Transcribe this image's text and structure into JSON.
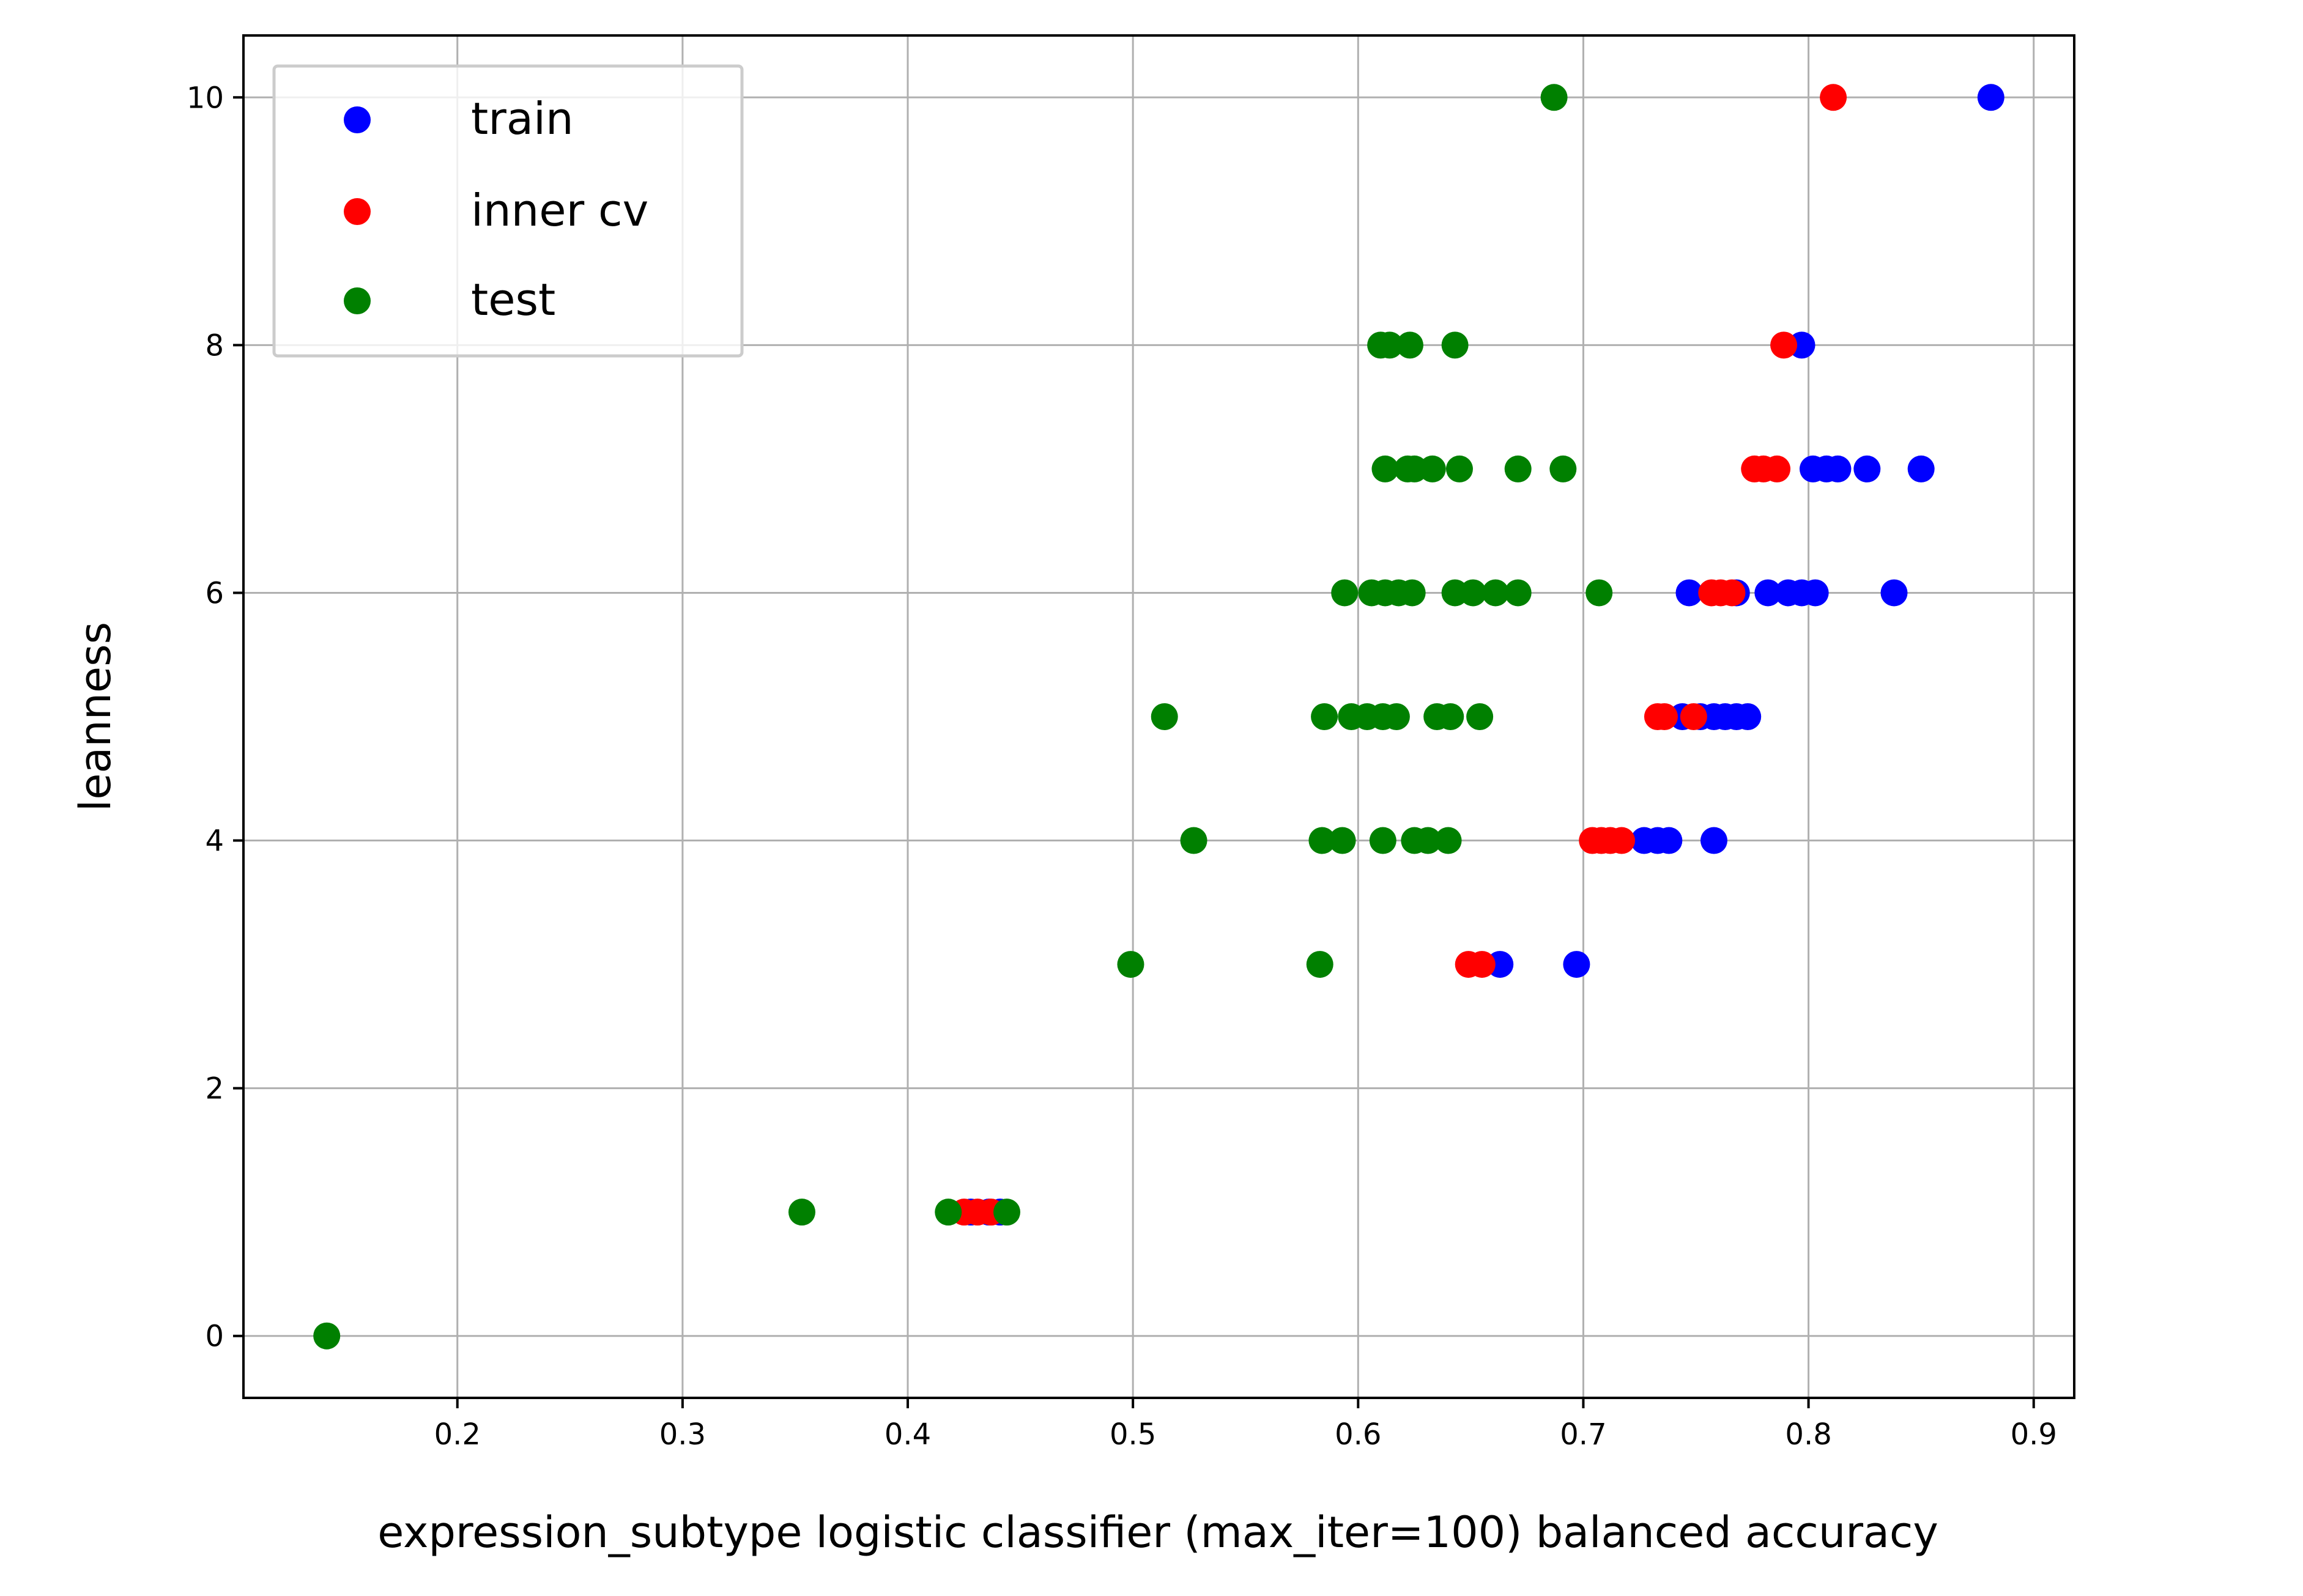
{
  "chart_data": {
    "type": "scatter",
    "title": "",
    "xlabel": "expression_subtype logistic classifier (max_iter=100) balanced accuracy",
    "ylabel": "leanness",
    "xlim": [
      0.105,
      0.918
    ],
    "ylim": [
      -0.5,
      10.5
    ],
    "xticks": [
      "0.2",
      "0.3",
      "0.4",
      "0.5",
      "0.6",
      "0.7",
      "0.8",
      "0.9"
    ],
    "yticks": [
      "0",
      "2",
      "4",
      "6",
      "8",
      "10"
    ],
    "grid": true,
    "legend_position": "top-left",
    "series": [
      {
        "name": "train",
        "color": "#0000ff",
        "points": [
          [
            0.881,
            10
          ],
          [
            0.797,
            8
          ],
          [
            0.85,
            7
          ],
          [
            0.826,
            7
          ],
          [
            0.813,
            7
          ],
          [
            0.808,
            7
          ],
          [
            0.802,
            7
          ],
          [
            0.838,
            6
          ],
          [
            0.803,
            6
          ],
          [
            0.797,
            6
          ],
          [
            0.791,
            6
          ],
          [
            0.782,
            6
          ],
          [
            0.768,
            6
          ],
          [
            0.747,
            6
          ],
          [
            0.773,
            5
          ],
          [
            0.768,
            5
          ],
          [
            0.763,
            5
          ],
          [
            0.758,
            5
          ],
          [
            0.752,
            5
          ],
          [
            0.744,
            5
          ],
          [
            0.758,
            4
          ],
          [
            0.738,
            4
          ],
          [
            0.733,
            4
          ],
          [
            0.727,
            4
          ],
          [
            0.697,
            3
          ],
          [
            0.663,
            3
          ],
          [
            0.441,
            1
          ],
          [
            0.436,
            1
          ],
          [
            0.428,
            1
          ]
        ]
      },
      {
        "name": "inner cv",
        "color": "#ff0000",
        "points": [
          [
            0.811,
            10
          ],
          [
            0.789,
            8
          ],
          [
            0.786,
            7
          ],
          [
            0.78,
            7
          ],
          [
            0.776,
            7
          ],
          [
            0.766,
            6
          ],
          [
            0.761,
            6
          ],
          [
            0.757,
            6
          ],
          [
            0.749,
            5
          ],
          [
            0.736,
            5
          ],
          [
            0.733,
            5
          ],
          [
            0.717,
            4
          ],
          [
            0.712,
            4
          ],
          [
            0.708,
            4
          ],
          [
            0.704,
            4
          ],
          [
            0.655,
            3
          ],
          [
            0.649,
            3
          ],
          [
            0.437,
            1
          ],
          [
            0.431,
            1
          ],
          [
            0.425,
            1
          ]
        ]
      },
      {
        "name": "test",
        "color": "#008000",
        "points": [
          [
            0.687,
            10
          ],
          [
            0.643,
            8
          ],
          [
            0.623,
            8
          ],
          [
            0.614,
            8
          ],
          [
            0.61,
            8
          ],
          [
            0.691,
            7
          ],
          [
            0.671,
            7
          ],
          [
            0.645,
            7
          ],
          [
            0.633,
            7
          ],
          [
            0.625,
            7
          ],
          [
            0.622,
            7
          ],
          [
            0.612,
            7
          ],
          [
            0.707,
            6
          ],
          [
            0.671,
            6
          ],
          [
            0.661,
            6
          ],
          [
            0.651,
            6
          ],
          [
            0.643,
            6
          ],
          [
            0.624,
            6
          ],
          [
            0.618,
            6
          ],
          [
            0.612,
            6
          ],
          [
            0.606,
            6
          ],
          [
            0.594,
            6
          ],
          [
            0.654,
            5
          ],
          [
            0.641,
            5
          ],
          [
            0.635,
            5
          ],
          [
            0.617,
            5
          ],
          [
            0.611,
            5
          ],
          [
            0.604,
            5
          ],
          [
            0.597,
            5
          ],
          [
            0.585,
            5
          ],
          [
            0.514,
            5
          ],
          [
            0.64,
            4
          ],
          [
            0.631,
            4
          ],
          [
            0.625,
            4
          ],
          [
            0.611,
            4
          ],
          [
            0.593,
            4
          ],
          [
            0.584,
            4
          ],
          [
            0.527,
            4
          ],
          [
            0.583,
            3
          ],
          [
            0.499,
            3
          ],
          [
            0.444,
            1
          ],
          [
            0.418,
            1
          ],
          [
            0.353,
            1
          ],
          [
            0.142,
            0
          ]
        ]
      }
    ]
  }
}
